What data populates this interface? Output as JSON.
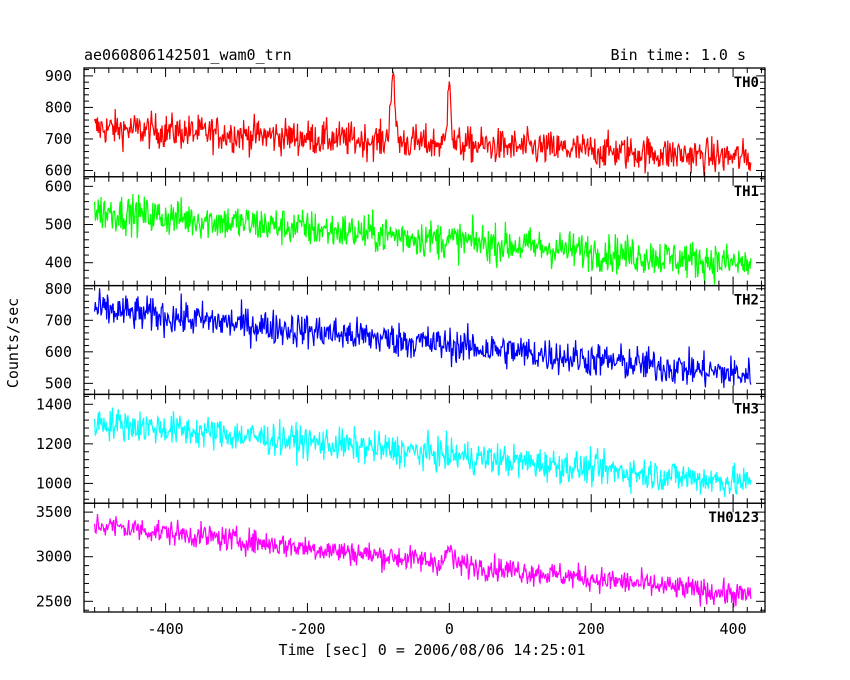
{
  "header": {
    "title": "ae060806142501_wam0_trn",
    "bin_time": "Bin time: 1.0 s"
  },
  "chart_data": {
    "type": "line",
    "xlabel": "Time [sec] 0 = 2006/08/06 14:25:01",
    "ylabel": "Counts/sec",
    "xlim": [
      -515,
      445
    ],
    "x_range": [
      -500,
      425
    ],
    "x_ticks": [
      -400,
      -200,
      0,
      200,
      400
    ],
    "bin_time_s": 1.0,
    "series": [
      {
        "name": "TH0",
        "color": "#ff0000",
        "ylim": [
          580,
          925
        ],
        "yticks": [
          600,
          700,
          800,
          900
        ],
        "trend_start": 735,
        "trend_end": 640,
        "noise": 28,
        "features": [
          {
            "t": -80,
            "peak": 880,
            "width": 5
          },
          {
            "t": 0,
            "peak": 925,
            "width": 3
          }
        ]
      },
      {
        "name": "TH1",
        "color": "#00ff00",
        "ylim": [
          340,
          625
        ],
        "yticks": [
          400,
          500,
          600
        ],
        "trend_start": 535,
        "trend_end": 395,
        "noise": 25,
        "features": []
      },
      {
        "name": "TH2",
        "color": "#0000ff",
        "ylim": [
          465,
          810
        ],
        "yticks": [
          500,
          600,
          700,
          800
        ],
        "trend_start": 735,
        "trend_end": 525,
        "noise": 28,
        "features": []
      },
      {
        "name": "TH3",
        "color": "#00ffff",
        "ylim": [
          900,
          1450
        ],
        "yticks": [
          1000,
          1200,
          1400
        ],
        "trend_start": 1310,
        "trend_end": 1000,
        "noise": 42,
        "features": []
      },
      {
        "name": "TH0123",
        "color": "#ff00ff",
        "ylim": [
          2380,
          3600
        ],
        "yticks": [
          2500,
          3000,
          3500
        ],
        "trend_start": 3360,
        "trend_end": 2560,
        "noise": 70,
        "features": [
          {
            "t": -80,
            "peak": 3000,
            "width": 6
          },
          {
            "t": 0,
            "peak": 3100,
            "width": 5
          }
        ]
      }
    ]
  }
}
